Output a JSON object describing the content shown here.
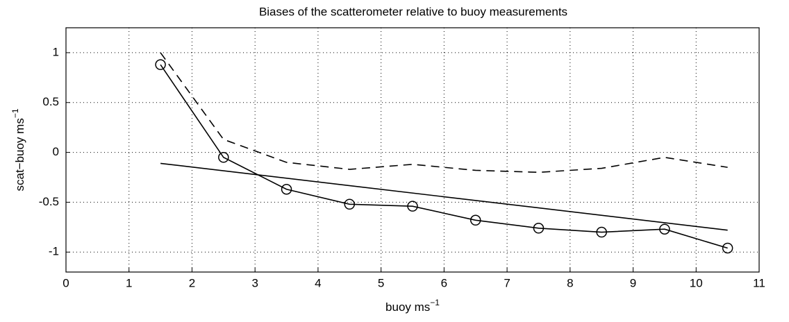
{
  "chart_data": {
    "type": "line",
    "title": "Biases of the scatterometer relative to buoy measurements",
    "xlabel": "buoy ms",
    "xlabel_superscript": "−1",
    "ylabel": "scat−buoy ms",
    "ylabel_superscript": "−1",
    "xlim": [
      0,
      11
    ],
    "xticks": [
      0,
      1,
      2,
      3,
      4,
      5,
      6,
      7,
      8,
      9,
      10,
      11
    ],
    "ylim": [
      -1.2,
      1.25
    ],
    "yticks": [
      -1,
      -0.5,
      0,
      0.5,
      1
    ],
    "grid": true,
    "series": [
      {
        "color": "#000000",
        "style": "solid",
        "marker": "circle",
        "x": [
          1.5,
          2.5,
          3.5,
          4.5,
          5.5,
          6.5,
          7.5,
          8.5,
          9.5,
          10.5
        ],
        "values": [
          0.88,
          -0.05,
          -0.37,
          -0.52,
          -0.54,
          -0.68,
          -0.76,
          -0.8,
          -0.77,
          -0.96
        ]
      },
      {
        "color": "#000000",
        "style": "dashed",
        "x": [
          1.5,
          2.5,
          3.5,
          4.5,
          5.5,
          6.5,
          7.5,
          8.5,
          9.5,
          10.5
        ],
        "values": [
          1.0,
          0.13,
          -0.1,
          -0.17,
          -0.12,
          -0.18,
          -0.2,
          -0.16,
          -0.05,
          -0.15
        ]
      },
      {
        "color": "#000000",
        "style": "solid",
        "x": [
          1.5,
          10.5
        ],
        "values": [
          -0.11,
          -0.78
        ]
      }
    ]
  }
}
